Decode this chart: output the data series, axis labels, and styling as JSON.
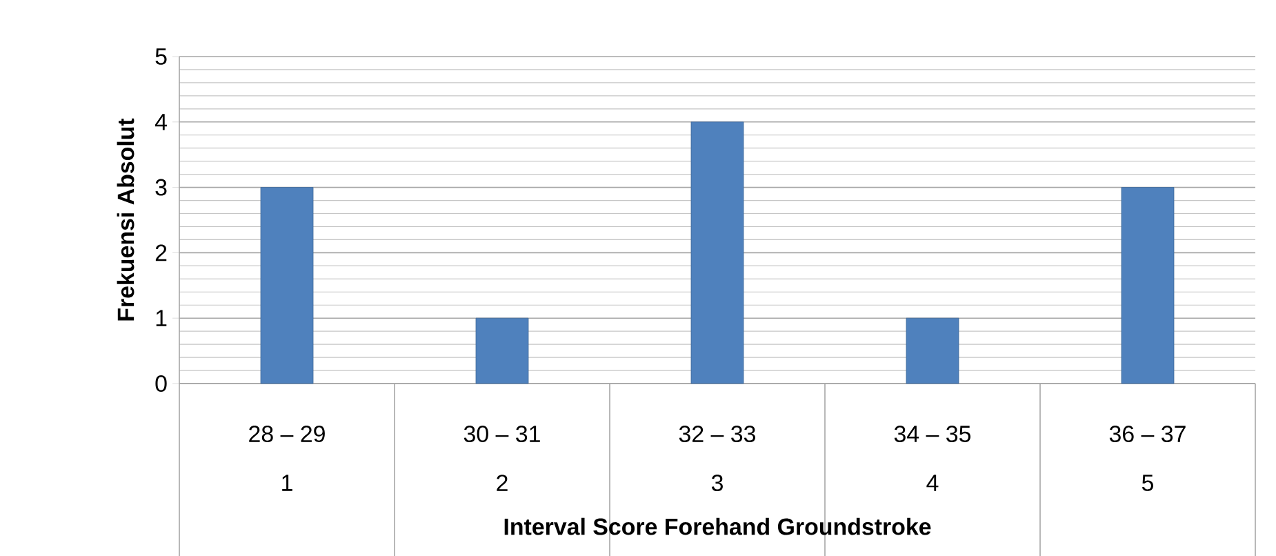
{
  "chart_data": {
    "type": "bar",
    "categories": [
      "28 – 29",
      "30 – 31",
      "32 – 33",
      "34 – 35",
      "36 – 37"
    ],
    "values": [
      3,
      1,
      4,
      1,
      3
    ],
    "color": "#4f81bd",
    "xlabel": "Interval Score Forehand Groundstroke",
    "ylabel": "Frekuensi Absolut",
    "ylim": [
      0,
      5
    ],
    "yticks": [
      0,
      1,
      2,
      3,
      4,
      5
    ],
    "grid": "y",
    "annotations": [
      "1",
      "2",
      "3",
      "4",
      "5"
    ]
  }
}
